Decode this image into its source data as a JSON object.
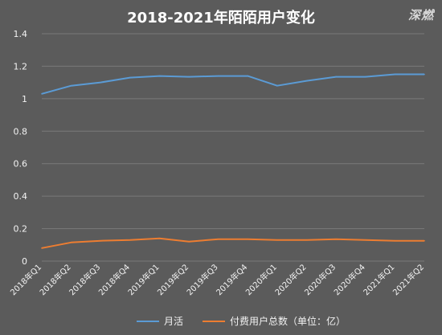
{
  "chart_data": {
    "type": "line",
    "title": "2018-2021年陌陌用户变化",
    "watermark": "深燃",
    "categories": [
      "2018年Q1",
      "2018年Q2",
      "2018年Q3",
      "2018年Q4",
      "2019年Q1",
      "2019年Q2",
      "2019年Q3",
      "2019年Q4",
      "2020年Q1",
      "2020年Q2",
      "2020年Q3",
      "2020年Q4",
      "2021年Q1",
      "2021年Q2"
    ],
    "series": [
      {
        "name": "月活",
        "color": "#5b9bd5",
        "values": [
          1.03,
          1.08,
          1.1,
          1.13,
          1.14,
          1.135,
          1.14,
          1.14,
          1.08,
          1.11,
          1.135,
          1.135,
          1.15,
          1.15
        ]
      },
      {
        "name": "付费用户总数（单位：亿）",
        "color": "#ed7d31",
        "values": [
          0.08,
          0.115,
          0.125,
          0.13,
          0.14,
          0.12,
          0.135,
          0.135,
          0.13,
          0.13,
          0.135,
          0.13,
          0.125,
          0.125
        ]
      }
    ],
    "yticks": [
      "0",
      "0.2",
      "0.4",
      "0.6",
      "0.8",
      "1",
      "1.2",
      "1.4"
    ],
    "ylim": [
      0,
      1.4
    ],
    "grid": true,
    "legend": "bottom"
  }
}
